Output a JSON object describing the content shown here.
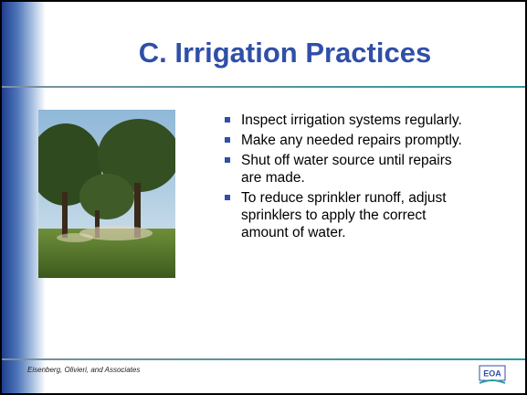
{
  "slide": {
    "title": "C.  Irrigation Practices",
    "bullets": [
      "Inspect irrigation systems regularly.",
      "Make any needed repairs promptly.",
      "Shut off water source until repairs are made.",
      "To reduce sprinkler runoff, adjust sprinklers to apply the correct amount of water."
    ],
    "footer": "Eisenberg, Olivieri, and Associates",
    "logo": "EOA"
  }
}
